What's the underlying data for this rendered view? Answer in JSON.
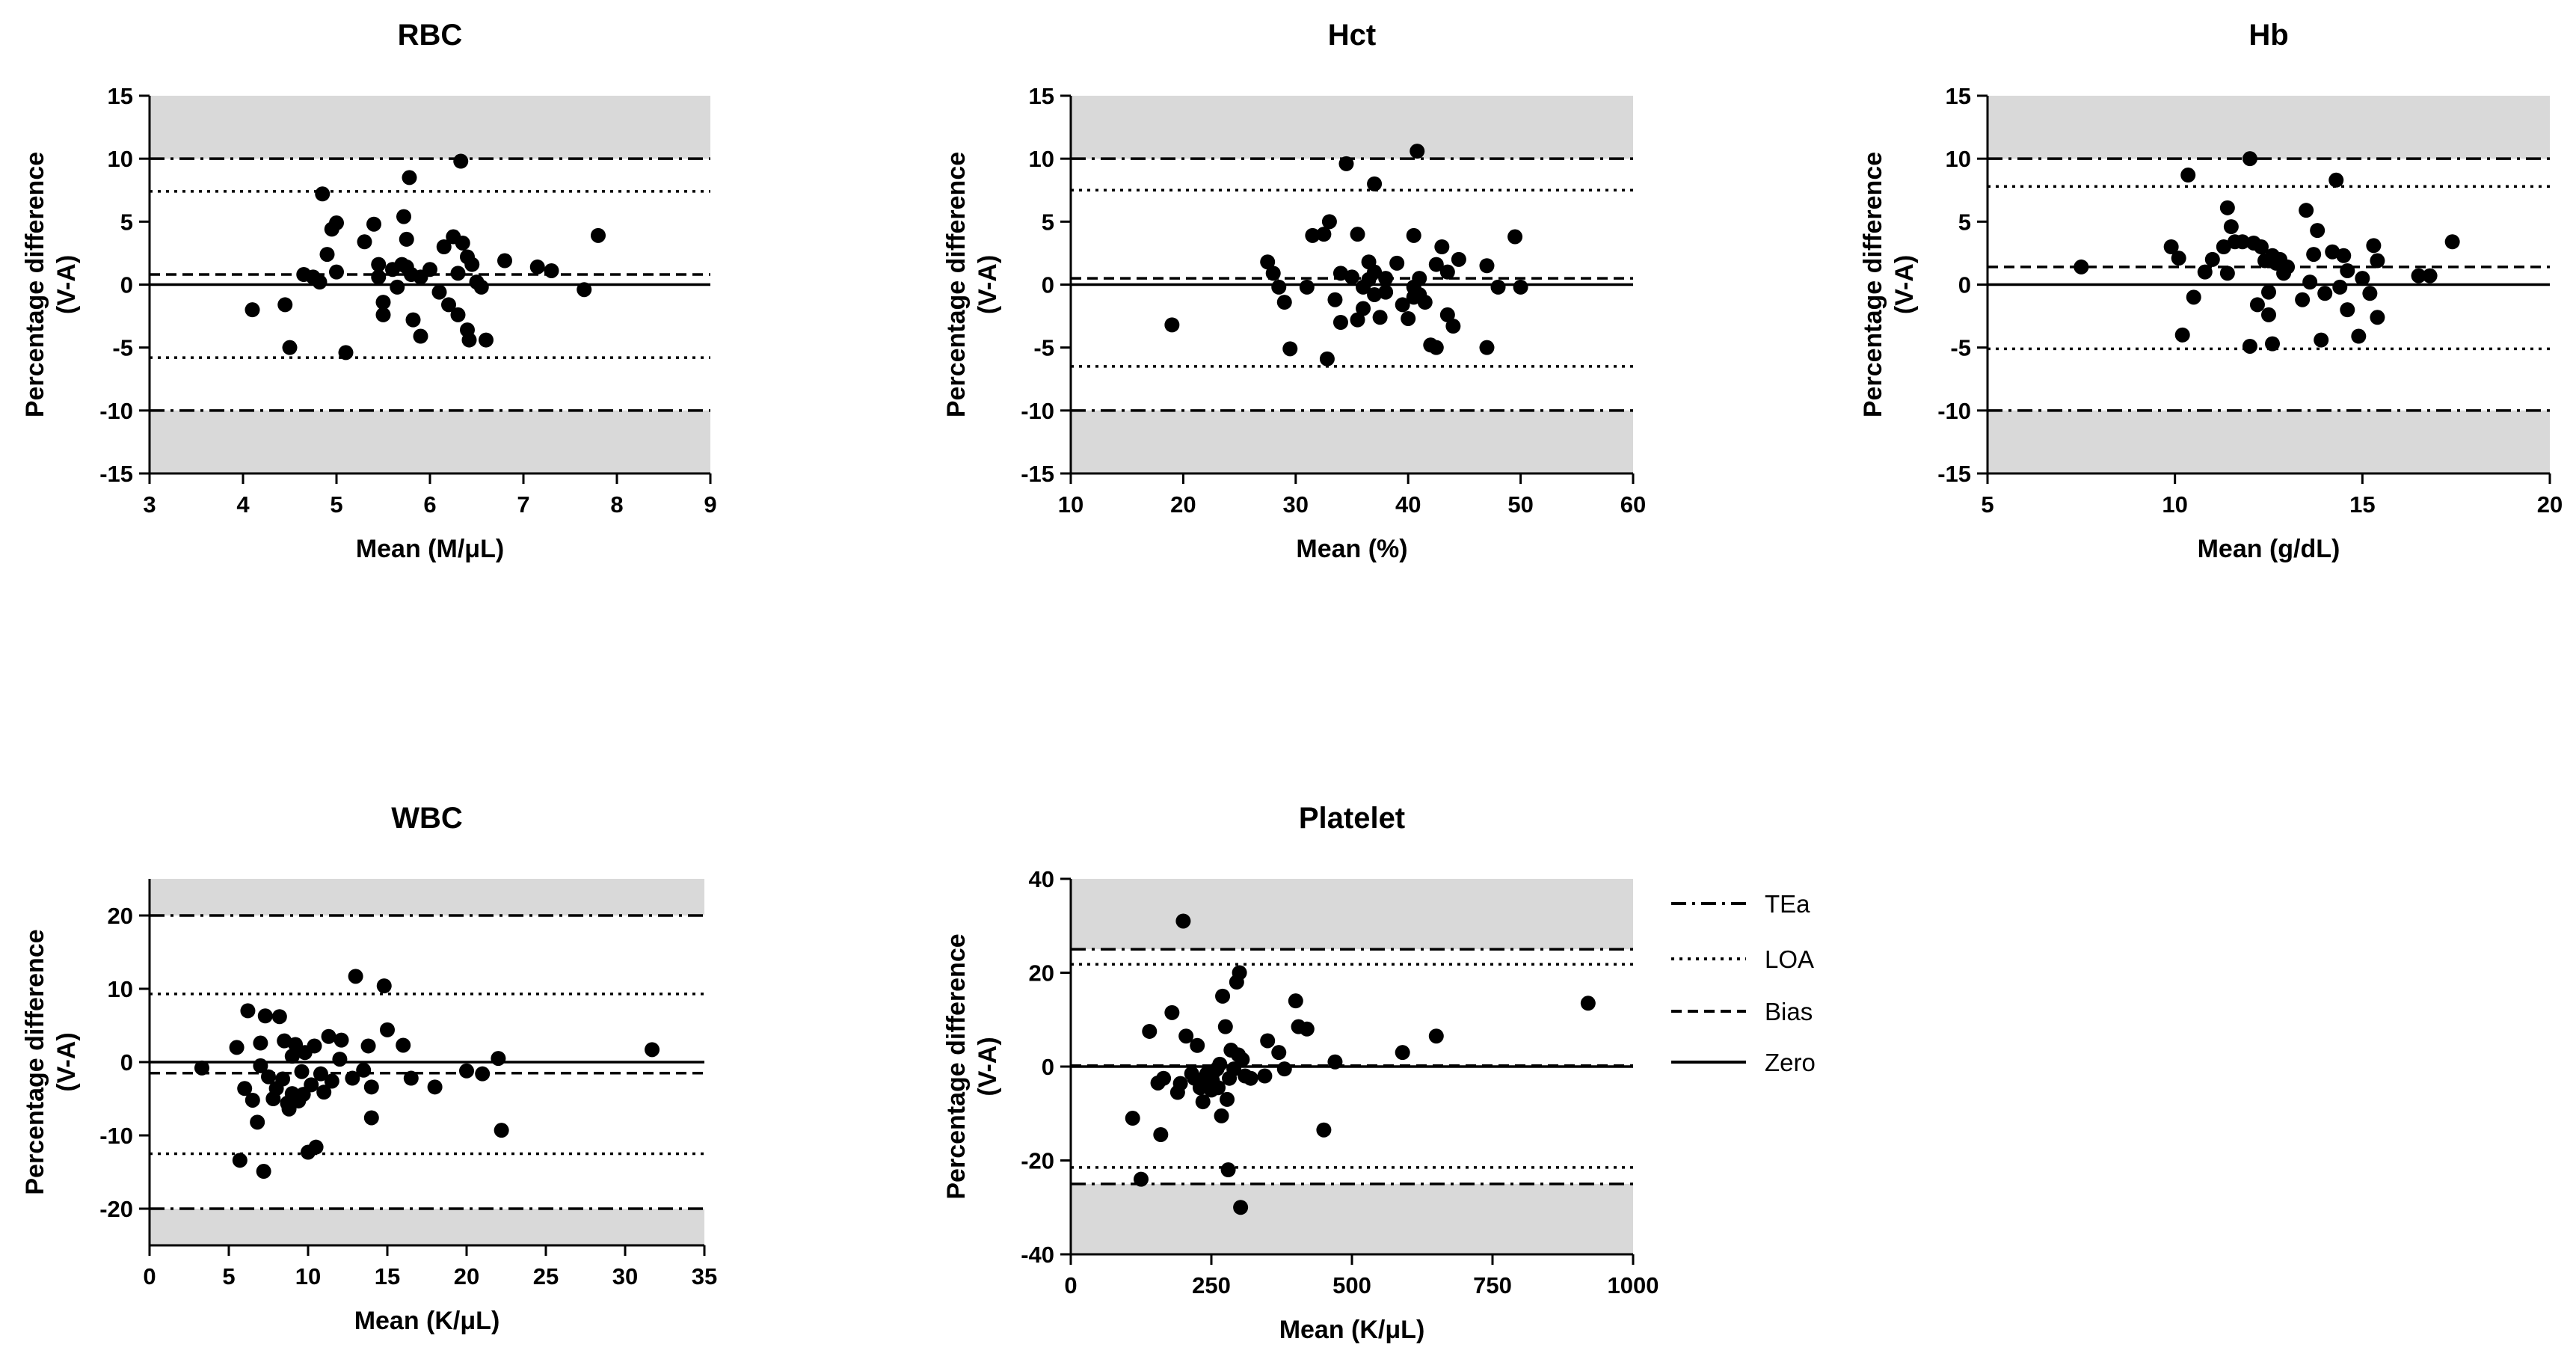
{
  "colors": {
    "shade": "#d9d9d9",
    "ink": "#000000",
    "background": "#ffffff"
  },
  "legend": {
    "items": [
      {
        "label": "TEa",
        "style": "dashdot"
      },
      {
        "label": "LOA",
        "style": "dotted"
      },
      {
        "label": "Bias",
        "style": "dashed"
      },
      {
        "label": "Zero",
        "style": "solid"
      }
    ]
  },
  "chart_data": [
    {
      "type": "scatter",
      "id": "rbc",
      "title": "RBC",
      "xlabel": "Mean (M/μL)",
      "ylabel": [
        "Percentage difference",
        "(V-A)"
      ],
      "xlim": [
        3,
        9
      ],
      "ylim": [
        -15,
        15
      ],
      "xticks": [
        3,
        4,
        5,
        6,
        7,
        8,
        9
      ],
      "yticks": [
        -15,
        -10,
        -5,
        0,
        5,
        10,
        15
      ],
      "tea": 10,
      "bias": 0.8,
      "loa": [
        -5.8,
        7.4
      ],
      "points": [
        [
          4.1,
          -2
        ],
        [
          4.45,
          -1.6
        ],
        [
          4.5,
          -5
        ],
        [
          4.65,
          0.8
        ],
        [
          4.75,
          0.6
        ],
        [
          4.82,
          0.2
        ],
        [
          4.85,
          7.2
        ],
        [
          4.9,
          2.4
        ],
        [
          4.95,
          4.4
        ],
        [
          5.0,
          4.9
        ],
        [
          5.0,
          1.0
        ],
        [
          5.1,
          -5.4
        ],
        [
          5.3,
          3.4
        ],
        [
          5.4,
          4.8
        ],
        [
          5.45,
          1.6
        ],
        [
          5.45,
          0.6
        ],
        [
          5.5,
          -1.4
        ],
        [
          5.5,
          -2.4
        ],
        [
          5.6,
          1.2
        ],
        [
          5.65,
          -0.2
        ],
        [
          5.7,
          1.6
        ],
        [
          5.72,
          5.4
        ],
        [
          5.75,
          1.4
        ],
        [
          5.75,
          3.6
        ],
        [
          5.78,
          8.5
        ],
        [
          5.8,
          0.8
        ],
        [
          5.82,
          -2.8
        ],
        [
          5.9,
          -4.1
        ],
        [
          5.9,
          0.6
        ],
        [
          6.0,
          1.2
        ],
        [
          6.1,
          -0.6
        ],
        [
          6.15,
          3.0
        ],
        [
          6.2,
          -1.6
        ],
        [
          6.25,
          3.8
        ],
        [
          6.3,
          -2.4
        ],
        [
          6.3,
          0.9
        ],
        [
          6.33,
          9.8
        ],
        [
          6.35,
          3.3
        ],
        [
          6.4,
          2.2
        ],
        [
          6.4,
          -3.6
        ],
        [
          6.42,
          -4.4
        ],
        [
          6.45,
          1.6
        ],
        [
          6.5,
          0.2
        ],
        [
          6.55,
          -0.2
        ],
        [
          6.6,
          -4.4
        ],
        [
          6.8,
          1.9
        ],
        [
          7.15,
          1.4
        ],
        [
          7.3,
          1.1
        ],
        [
          7.65,
          -0.4
        ],
        [
          7.8,
          3.9
        ]
      ]
    },
    {
      "type": "scatter",
      "id": "hct",
      "title": "Hct",
      "xlabel": "Mean (%)",
      "ylabel": [
        "Percentage difference",
        "(V-A)"
      ],
      "xlim": [
        10,
        60
      ],
      "ylim": [
        -15,
        15
      ],
      "xticks": [
        10,
        20,
        30,
        40,
        50,
        60
      ],
      "yticks": [
        -15,
        -10,
        -5,
        0,
        5,
        10,
        15
      ],
      "tea": 10,
      "bias": 0.5,
      "loa": [
        -6.5,
        7.5
      ],
      "points": [
        [
          19,
          -3.2
        ],
        [
          27.5,
          1.8
        ],
        [
          28,
          0.9
        ],
        [
          28.5,
          -0.2
        ],
        [
          29,
          -1.4
        ],
        [
          29.5,
          -5.1
        ],
        [
          31,
          -0.2
        ],
        [
          31.5,
          3.9
        ],
        [
          32.5,
          4.0
        ],
        [
          32.8,
          -5.9
        ],
        [
          33,
          5.0
        ],
        [
          33.5,
          -1.2
        ],
        [
          34,
          0.9
        ],
        [
          34,
          -3.0
        ],
        [
          34.5,
          9.6
        ],
        [
          35,
          0.6
        ],
        [
          35.5,
          4.0
        ],
        [
          35.5,
          -2.8
        ],
        [
          36,
          -1.9
        ],
        [
          36,
          -0.2
        ],
        [
          36.5,
          1.8
        ],
        [
          36.5,
          0.4
        ],
        [
          37,
          8.0
        ],
        [
          37,
          -0.8
        ],
        [
          37,
          1.0
        ],
        [
          37.5,
          -2.6
        ],
        [
          38,
          0.5
        ],
        [
          38,
          -0.6
        ],
        [
          39,
          1.7
        ],
        [
          39.5,
          -1.6
        ],
        [
          40,
          -2.7
        ],
        [
          40.5,
          3.9
        ],
        [
          40.5,
          -1.0
        ],
        [
          40.5,
          -0.2
        ],
        [
          40.8,
          10.6
        ],
        [
          41,
          0.5
        ],
        [
          41,
          -0.8
        ],
        [
          41.5,
          -1.4
        ],
        [
          42,
          -4.8
        ],
        [
          42.5,
          1.6
        ],
        [
          42.5,
          -5.0
        ],
        [
          43,
          3.0
        ],
        [
          43.5,
          1.0
        ],
        [
          43.5,
          -2.4
        ],
        [
          44,
          -3.3
        ],
        [
          44.5,
          2.0
        ],
        [
          47,
          1.5
        ],
        [
          47,
          -5.0
        ],
        [
          48,
          -0.2
        ],
        [
          49.5,
          3.8
        ],
        [
          50,
          -0.2
        ]
      ]
    },
    {
      "type": "scatter",
      "id": "hb",
      "title": "Hb",
      "xlabel": "Mean (g/dL)",
      "ylabel": [
        "Percentage difference",
        "(V-A)"
      ],
      "xlim": [
        5,
        20
      ],
      "ylim": [
        -15,
        15
      ],
      "xticks": [
        5,
        10,
        15,
        20
      ],
      "yticks": [
        -15,
        -10,
        -5,
        0,
        5,
        10,
        15
      ],
      "tea": 10,
      "bias": 1.4,
      "loa": [
        -5.1,
        7.8
      ],
      "points": [
        [
          7.5,
          1.4
        ],
        [
          9.9,
          3.0
        ],
        [
          10.1,
          2.1
        ],
        [
          10.2,
          -4.0
        ],
        [
          10.35,
          8.7
        ],
        [
          10.5,
          -1.0
        ],
        [
          10.8,
          1.0
        ],
        [
          11.0,
          2.0
        ],
        [
          11.3,
          3.0
        ],
        [
          11.4,
          0.9
        ],
        [
          11.4,
          6.1
        ],
        [
          11.5,
          4.6
        ],
        [
          11.6,
          3.4
        ],
        [
          11.8,
          3.4
        ],
        [
          12.0,
          10.0
        ],
        [
          12.0,
          -4.9
        ],
        [
          12.1,
          3.3
        ],
        [
          12.2,
          -1.6
        ],
        [
          12.3,
          3.0
        ],
        [
          12.4,
          1.9
        ],
        [
          12.5,
          -0.6
        ],
        [
          12.5,
          -2.4
        ],
        [
          12.6,
          -4.7
        ],
        [
          12.6,
          2.3
        ],
        [
          12.7,
          1.7
        ],
        [
          12.8,
          2.0
        ],
        [
          12.9,
          0.9
        ],
        [
          13.0,
          1.4
        ],
        [
          13.4,
          -1.2
        ],
        [
          13.5,
          5.9
        ],
        [
          13.6,
          0.2
        ],
        [
          13.7,
          2.4
        ],
        [
          13.8,
          4.3
        ],
        [
          13.9,
          -4.4
        ],
        [
          14.0,
          -0.7
        ],
        [
          14.2,
          2.6
        ],
        [
          14.3,
          8.3
        ],
        [
          14.4,
          -0.2
        ],
        [
          14.5,
          2.3
        ],
        [
          14.6,
          1.1
        ],
        [
          14.6,
          -2.0
        ],
        [
          14.9,
          -4.1
        ],
        [
          15.0,
          0.5
        ],
        [
          15.2,
          -0.7
        ],
        [
          15.3,
          3.1
        ],
        [
          15.4,
          1.9
        ],
        [
          15.4,
          -2.6
        ],
        [
          16.5,
          0.7
        ],
        [
          16.8,
          0.7
        ],
        [
          17.4,
          3.4
        ]
      ]
    },
    {
      "type": "scatter",
      "id": "wbc",
      "title": "WBC",
      "xlabel": "Mean (K/μL)",
      "ylabel": [
        "Percentage difference",
        "(V-A)"
      ],
      "xlim": [
        0,
        35
      ],
      "ylim": [
        -25,
        25
      ],
      "xticks": [
        0,
        5,
        10,
        15,
        20,
        25,
        30,
        35
      ],
      "yticks": [
        -20,
        -10,
        0,
        10,
        20
      ],
      "tea": 20,
      "bias": -1.5,
      "loa": [
        -12.5,
        9.3
      ],
      "points": [
        [
          3.3,
          -0.8
        ],
        [
          5.5,
          2.0
        ],
        [
          5.7,
          -13.4
        ],
        [
          6,
          -3.6
        ],
        [
          6.2,
          7.0
        ],
        [
          6.5,
          -5.2
        ],
        [
          6.8,
          -8.2
        ],
        [
          7,
          2.6
        ],
        [
          7,
          -0.5
        ],
        [
          7.2,
          -14.9
        ],
        [
          7.3,
          6.3
        ],
        [
          7.5,
          -2.0
        ],
        [
          7.8,
          -5.0
        ],
        [
          8,
          -3.6
        ],
        [
          8.2,
          6.2
        ],
        [
          8.4,
          -2.3
        ],
        [
          8.5,
          2.9
        ],
        [
          8.7,
          -5.6
        ],
        [
          8.8,
          -6.4
        ],
        [
          9,
          -4.3
        ],
        [
          9,
          0.8
        ],
        [
          9.2,
          2.4
        ],
        [
          9.4,
          -5.3
        ],
        [
          9.6,
          -1.3
        ],
        [
          9.7,
          -4.4
        ],
        [
          9.8,
          1.3
        ],
        [
          10,
          -12.3
        ],
        [
          10.2,
          -3.1
        ],
        [
          10.4,
          2.2
        ],
        [
          10.5,
          -11.6
        ],
        [
          10.8,
          -1.6
        ],
        [
          11,
          -4.1
        ],
        [
          11.3,
          3.5
        ],
        [
          11.5,
          -2.6
        ],
        [
          12,
          0.4
        ],
        [
          12.1,
          3.0
        ],
        [
          12.8,
          -2.2
        ],
        [
          13,
          11.7
        ],
        [
          13.5,
          -1.1
        ],
        [
          13.8,
          2.2
        ],
        [
          14,
          -3.4
        ],
        [
          14,
          -7.6
        ],
        [
          14.8,
          10.4
        ],
        [
          15,
          4.4
        ],
        [
          16,
          2.3
        ],
        [
          16.5,
          -2.2
        ],
        [
          18,
          -3.4
        ],
        [
          20,
          -1.2
        ],
        [
          21,
          -1.6
        ],
        [
          22,
          0.5
        ],
        [
          22.2,
          -9.3
        ],
        [
          31.7,
          1.7
        ]
      ]
    },
    {
      "type": "scatter",
      "id": "platelet",
      "title": "Platelet",
      "xlabel": "Mean (K/μL)",
      "ylabel": [
        "Percentage difference",
        "(V-A)"
      ],
      "xlim": [
        0,
        1000
      ],
      "ylim": [
        -40,
        40
      ],
      "xticks": [
        0,
        250,
        500,
        750,
        1000
      ],
      "yticks": [
        -40,
        -20,
        0,
        20,
        40
      ],
      "tea": 25,
      "bias": 0.2,
      "loa": [
        -21.5,
        21.8
      ],
      "points": [
        [
          110,
          -11
        ],
        [
          125,
          -24
        ],
        [
          140,
          7.5
        ],
        [
          155,
          -3.5
        ],
        [
          160,
          -14.5
        ],
        [
          165,
          -2.5
        ],
        [
          180,
          11.5
        ],
        [
          190,
          -5.5
        ],
        [
          195,
          -3.6
        ],
        [
          200,
          31
        ],
        [
          205,
          6.5
        ],
        [
          215,
          -1.5
        ],
        [
          220,
          -2.5
        ],
        [
          225,
          4.5
        ],
        [
          230,
          -4.5
        ],
        [
          235,
          -7.5
        ],
        [
          240,
          -2.5
        ],
        [
          242,
          -1.5
        ],
        [
          250,
          -5
        ],
        [
          252,
          -3
        ],
        [
          255,
          -1
        ],
        [
          260,
          -0.5
        ],
        [
          262,
          -4.5
        ],
        [
          265,
          0.5
        ],
        [
          268,
          -10.5
        ],
        [
          270,
          15
        ],
        [
          275,
          8.5
        ],
        [
          278,
          -7
        ],
        [
          280,
          -22
        ],
        [
          282,
          -2.5
        ],
        [
          285,
          3.5
        ],
        [
          290,
          -0.5
        ],
        [
          295,
          18
        ],
        [
          298,
          2.5
        ],
        [
          300,
          20
        ],
        [
          302,
          -30
        ],
        [
          305,
          1.5
        ],
        [
          310,
          -2
        ],
        [
          320,
          -2.5
        ],
        [
          345,
          -2
        ],
        [
          350,
          5.5
        ],
        [
          370,
          3
        ],
        [
          380,
          -0.5
        ],
        [
          400,
          14
        ],
        [
          405,
          8.5
        ],
        [
          420,
          8
        ],
        [
          450,
          -13.5
        ],
        [
          470,
          1
        ],
        [
          590,
          3
        ],
        [
          650,
          6.5
        ],
        [
          920,
          13.5
        ]
      ]
    }
  ]
}
